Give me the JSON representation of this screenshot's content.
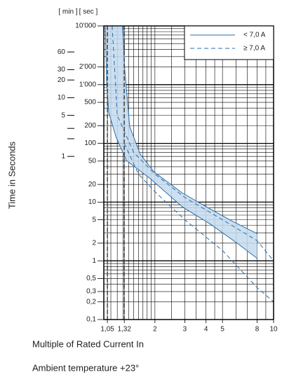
{
  "chart_data": {
    "type": "line",
    "y_axis_label": "Time in Seconds",
    "x_axis_label": "Multiple of Rated Current In",
    "note": "Ambient temperature +23°",
    "y_header": "[ sec ]",
    "y2_header": "[ min ]",
    "log_x": true,
    "log_y": true,
    "grid": true,
    "legend": "upper right",
    "xlim": [
      1,
      10
    ],
    "ylim": [
      0.1,
      10000
    ],
    "y2lim": [
      0.0016667,
      166.667
    ],
    "xticks": [
      {
        "value": 1.05,
        "label": "1,05"
      },
      {
        "value": 1.32,
        "label": "1,32"
      },
      2,
      3,
      4,
      5,
      8,
      10
    ],
    "yticks": [
      {
        "value": 10000,
        "label": "10'000"
      },
      {
        "value": 2000,
        "label": "2'000"
      },
      {
        "value": 1000,
        "label": "1'000"
      },
      500,
      200,
      100,
      50,
      20,
      10,
      5,
      2,
      1,
      {
        "value": 0.5,
        "label": "0,5"
      },
      {
        "value": 0.3,
        "label": "0,3"
      },
      {
        "value": 0.2,
        "label": "0,2"
      },
      {
        "value": 0.1,
        "label": "0,1"
      }
    ],
    "y2ticks": [
      60,
      30,
      20,
      10,
      5,
      1
    ],
    "y2ticks_unlabeled": [
      3,
      2
    ],
    "xgrid": [
      1,
      1.05,
      1.1,
      1.2,
      1.3,
      1.32,
      1.4,
      1.5,
      1.6,
      1.7,
      1.8,
      1.9,
      2,
      2.5,
      3,
      3.5,
      4,
      4.5,
      5,
      6,
      7,
      8,
      9,
      10
    ],
    "ygrid": [
      0.1,
      0.2,
      0.3,
      0.4,
      0.5,
      0.6,
      0.7,
      0.8,
      0.9,
      1,
      2,
      3,
      4,
      5,
      6,
      7,
      8,
      9,
      10,
      20,
      30,
      40,
      50,
      60,
      70,
      80,
      90,
      100,
      200,
      300,
      400,
      500,
      600,
      700,
      800,
      900,
      1000,
      2000,
      3000,
      4000,
      5000,
      6000,
      7000,
      8000,
      9000,
      10000
    ],
    "reference_lines_x": [
      1.05,
      1.32
    ],
    "series": [
      {
        "name": "< 7,0 A",
        "color": "#2a6ea8",
        "style": "solid",
        "fill": "#c4dbee",
        "curves": [
          {
            "x": [
              1.29,
              1.33,
              1.42,
              1.64,
              1.98,
              2.9,
              4.25,
              5.65,
              8
            ],
            "values": [
              10000,
              1730,
              193,
              65,
              32.5,
              14.3,
              7.6,
              4.8,
              2.9
            ]
          },
          {
            "x": [
              1.02,
              1.04,
              1.07,
              1.18,
              1.36,
              1.89,
              2.9,
              4.25,
              6.2,
              8
            ],
            "values": [
              10000,
              1000,
              333,
              128,
              51,
              24.7,
              8.3,
              4.2,
              1.93,
              1.1
            ]
          }
        ]
      },
      {
        "name": "≥ 7,0 A",
        "color": "#2a6ea8",
        "style": "dashed",
        "curves": [
          {
            "x": [
              1.12,
              1.2,
              1.5,
              2,
              3,
              5,
              8,
              10
            ],
            "values": [
              10000,
              300,
              70,
              30,
              12,
              5,
              2.2,
              1
            ]
          },
          {
            "x": [
              1.32,
              1.6,
              2,
              3,
              5,
              8,
              10
            ],
            "values": [
              100,
              30,
              15,
              5,
              1.5,
              0.35,
              0.2
            ]
          }
        ]
      }
    ]
  }
}
